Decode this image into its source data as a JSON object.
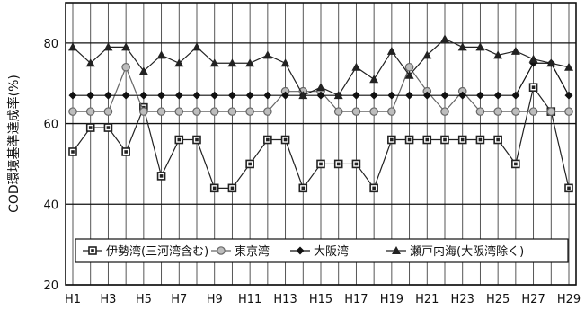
{
  "chart_data": {
    "type": "line",
    "title": "",
    "xlabel": "",
    "ylabel": "COD環境基準達成率(%)",
    "ylim": [
      20,
      90
    ],
    "yticks": [
      20,
      40,
      60,
      80
    ],
    "grid": true,
    "legend_placement": "bottom",
    "x": [
      "H1",
      "H2",
      "H3",
      "H4",
      "H5",
      "H6",
      "H7",
      "H8",
      "H9",
      "H10",
      "H11",
      "H12",
      "H13",
      "H14",
      "H15",
      "H16",
      "H17",
      "H18",
      "H19",
      "H20",
      "H21",
      "H22",
      "H23",
      "H24",
      "H25",
      "H26",
      "H27",
      "H28",
      "H29"
    ],
    "xtick_labels": [
      "H1",
      "H3",
      "H5",
      "H7",
      "H9",
      "H11",
      "H13",
      "H15",
      "H17",
      "H19",
      "H21",
      "H23",
      "H25",
      "H27",
      "H29"
    ],
    "series": [
      {
        "name": "伊勢湾(三河湾含む)",
        "marker": "square",
        "color": "#222222",
        "values": [
          53,
          59,
          59,
          53,
          64,
          47,
          56,
          56,
          44,
          44,
          50,
          56,
          56,
          44,
          50,
          50,
          50,
          44,
          56,
          56,
          56,
          56,
          56,
          56,
          56,
          50,
          69,
          63,
          44
        ]
      },
      {
        "name": "東京湾",
        "marker": "circle",
        "color": "#666666",
        "values": [
          63,
          63,
          63,
          74,
          63,
          63,
          63,
          63,
          63,
          63,
          63,
          63,
          68,
          68,
          68,
          63,
          63,
          63,
          63,
          74,
          68,
          63,
          68,
          63,
          63,
          63,
          63,
          63,
          63
        ]
      },
      {
        "name": "大阪湾",
        "marker": "diamond",
        "color": "#111111",
        "values": [
          67,
          67,
          67,
          67,
          67,
          67,
          67,
          67,
          67,
          67,
          67,
          67,
          67,
          67,
          67,
          67,
          67,
          67,
          67,
          67,
          67,
          67,
          67,
          67,
          67,
          67,
          75,
          75,
          67
        ]
      },
      {
        "name": "瀬戸内海(大阪湾除く)",
        "marker": "triangle",
        "color": "#222222",
        "values": [
          79,
          75,
          79,
          79,
          73,
          77,
          75,
          79,
          75,
          75,
          75,
          77,
          75,
          67,
          69,
          67,
          74,
          71,
          78,
          72,
          77,
          81,
          79,
          79,
          77,
          78,
          76,
          75,
          74
        ]
      }
    ]
  }
}
